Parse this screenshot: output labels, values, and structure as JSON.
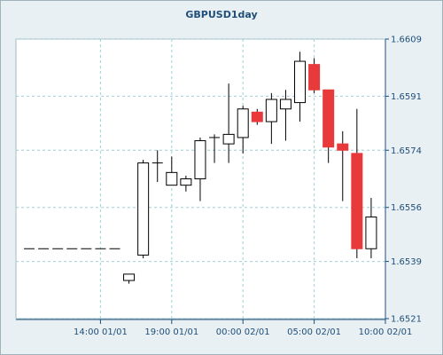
{
  "chart_data": {
    "type": "candlestick",
    "title": "GBPUSD1day",
    "xlabel": "",
    "ylabel": "",
    "ylim": [
      1.6521,
      1.6609
    ],
    "y_ticks": [
      "1.6609",
      "1.6591",
      "1.6574",
      "1.6556",
      "1.6539",
      "1.6521"
    ],
    "x_tick_labels": [
      "14:00 01/01",
      "19:00 01/01",
      "00:00 02/01",
      "05:00 02/01",
      "10:00 02/01"
    ],
    "x_tick_bars": [
      5,
      10,
      15,
      20,
      25
    ],
    "grid": true,
    "colors": {
      "up": "#ffffff",
      "down": "#e8393b",
      "outline": "#000000",
      "grid": "#9ed0d6",
      "axis": "#1f4e79"
    },
    "candles": [
      {
        "open": 1.6543,
        "high": 1.6543,
        "low": 1.6543,
        "close": 1.6543
      },
      {
        "open": 1.6543,
        "high": 1.6543,
        "low": 1.6543,
        "close": 1.6543
      },
      {
        "open": 1.6543,
        "high": 1.6543,
        "low": 1.6543,
        "close": 1.6543
      },
      {
        "open": 1.6543,
        "high": 1.6543,
        "low": 1.6543,
        "close": 1.6543
      },
      {
        "open": 1.6543,
        "high": 1.6543,
        "low": 1.6543,
        "close": 1.6543
      },
      {
        "open": 1.6543,
        "high": 1.6543,
        "low": 1.6543,
        "close": 1.6543
      },
      {
        "open": 1.6543,
        "high": 1.6543,
        "low": 1.6543,
        "close": 1.6543
      },
      {
        "open": 1.6533,
        "high": 1.6535,
        "low": 1.6532,
        "close": 1.6535
      },
      {
        "open": 1.6541,
        "high": 1.6571,
        "low": 1.654,
        "close": 1.657
      },
      {
        "open": 1.657,
        "high": 1.6574,
        "low": 1.6564,
        "close": 1.657
      },
      {
        "open": 1.6563,
        "high": 1.6572,
        "low": 1.6563,
        "close": 1.6567
      },
      {
        "open": 1.6563,
        "high": 1.6566,
        "low": 1.6561,
        "close": 1.6565
      },
      {
        "open": 1.6565,
        "high": 1.6578,
        "low": 1.6558,
        "close": 1.6577
      },
      {
        "open": 1.6578,
        "high": 1.6579,
        "low": 1.657,
        "close": 1.6578
      },
      {
        "open": 1.6576,
        "high": 1.6595,
        "low": 1.657,
        "close": 1.6579
      },
      {
        "open": 1.6578,
        "high": 1.6588,
        "low": 1.6573,
        "close": 1.6587
      },
      {
        "open": 1.6586,
        "high": 1.6587,
        "low": 1.6582,
        "close": 1.6583
      },
      {
        "open": 1.6583,
        "high": 1.6592,
        "low": 1.6576,
        "close": 1.659
      },
      {
        "open": 1.6587,
        "high": 1.6593,
        "low": 1.6577,
        "close": 1.659
      },
      {
        "open": 1.6589,
        "high": 1.6605,
        "low": 1.6583,
        "close": 1.6602
      },
      {
        "open": 1.6601,
        "high": 1.6603,
        "low": 1.6592,
        "close": 1.6593
      },
      {
        "open": 1.6593,
        "high": 1.6593,
        "low": 1.657,
        "close": 1.6575
      },
      {
        "open": 1.6576,
        "high": 1.658,
        "low": 1.6558,
        "close": 1.6574
      },
      {
        "open": 1.6573,
        "high": 1.6587,
        "low": 1.654,
        "close": 1.6543
      },
      {
        "open": 1.6543,
        "high": 1.6559,
        "low": 1.654,
        "close": 1.6553
      }
    ]
  }
}
